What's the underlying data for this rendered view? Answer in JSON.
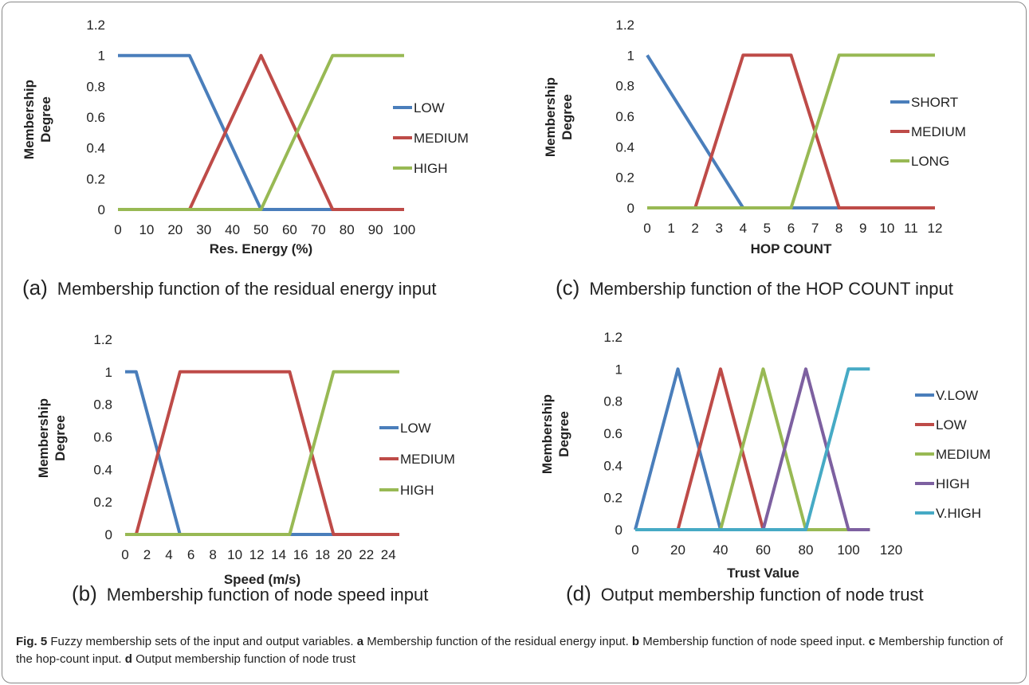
{
  "caption": {
    "fig_label": "Fig. 5",
    "lead": " Fuzzy membership sets of the input and output variables. ",
    "parts": [
      {
        "letter": "a",
        "text": " Membership function of the residual energy input. "
      },
      {
        "letter": "b",
        "text": " Membership function of node speed input. "
      },
      {
        "letter": "c",
        "text": " Membership function of the hop-count input. "
      },
      {
        "letter": "d",
        "text": " Output membership function of node trust"
      }
    ]
  },
  "chart_data": [
    {
      "id": "a",
      "type": "line",
      "subcaption_letter": "(a)",
      "subcaption": "Membership function of the residual energy input",
      "xlabel": "Res. Energy (%)",
      "ylabel": "Membership Degree",
      "xlim": [
        0,
        100
      ],
      "ylim": [
        0,
        1.2
      ],
      "xticks": [
        "0",
        "10",
        "20",
        "30",
        "40",
        "50",
        "60",
        "70",
        "80",
        "90",
        "100"
      ],
      "yticks": [
        "0",
        "0.2",
        "0.4",
        "0.6",
        "0.8",
        "1",
        "1.2"
      ],
      "legend": "right",
      "series": [
        {
          "name": "LOW",
          "color": "#4a7ebb",
          "x": [
            0,
            25,
            50,
            75,
            100
          ],
          "y": [
            1,
            1,
            0,
            0,
            0
          ]
        },
        {
          "name": "MEDIUM",
          "color": "#be4b48",
          "x": [
            0,
            25,
            50,
            75,
            100
          ],
          "y": [
            0,
            0,
            1,
            0,
            0
          ]
        },
        {
          "name": "HIGH",
          "color": "#98b954",
          "x": [
            0,
            25,
            50,
            75,
            100
          ],
          "y": [
            0,
            0,
            0,
            1,
            1
          ]
        }
      ]
    },
    {
      "id": "b",
      "type": "line",
      "subcaption_letter": "(b)",
      "subcaption": "Membership function of node speed input",
      "xlabel": "Speed (m/s)",
      "ylabel": "Membership Degree",
      "xlim": [
        0,
        25
      ],
      "ylim": [
        0,
        1.2
      ],
      "xticks": [
        "0",
        "2",
        "4",
        "6",
        "8",
        "10",
        "12",
        "14",
        "16",
        "18",
        "20",
        "22",
        "24"
      ],
      "yticks": [
        "0",
        "0.2",
        "0.4",
        "0.6",
        "0.8",
        "1",
        "1.2"
      ],
      "legend": "right",
      "series": [
        {
          "name": "LOW",
          "color": "#4a7ebb",
          "x": [
            0,
            1,
            5,
            15,
            19,
            25
          ],
          "y": [
            1,
            1,
            0,
            0,
            0,
            0
          ]
        },
        {
          "name": "MEDIUM",
          "color": "#be4b48",
          "x": [
            0,
            1,
            5,
            15,
            19,
            25
          ],
          "y": [
            0,
            0,
            1,
            1,
            0,
            0
          ]
        },
        {
          "name": "HIGH",
          "color": "#98b954",
          "x": [
            0,
            1,
            5,
            15,
            19,
            25
          ],
          "y": [
            0,
            0,
            0,
            0,
            1,
            1
          ]
        }
      ]
    },
    {
      "id": "c",
      "type": "line",
      "subcaption_letter": "(c)",
      "subcaption": "Membership function of the HOP COUNT input",
      "xlabel": "HOP COUNT",
      "ylabel": "Membership Degree",
      "xlim": [
        0,
        12
      ],
      "ylim": [
        0,
        1.2
      ],
      "xticks": [
        "0",
        "1",
        "2",
        "3",
        "4",
        "5",
        "6",
        "7",
        "8",
        "9",
        "10",
        "11",
        "12"
      ],
      "yticks": [
        "0",
        "0.2",
        "0.4",
        "0.6",
        "0.8",
        "1",
        "1.2"
      ],
      "legend": "right",
      "series": [
        {
          "name": "SHORT",
          "color": "#4a7ebb",
          "x": [
            0,
            2,
            4,
            6,
            8,
            12
          ],
          "y": [
            1,
            0.5,
            0,
            0,
            0,
            0
          ]
        },
        {
          "name": "MEDIUM",
          "color": "#be4b48",
          "x": [
            0,
            2,
            4,
            6,
            8,
            12
          ],
          "y": [
            0,
            0,
            1,
            1,
            0,
            0
          ]
        },
        {
          "name": "LONG",
          "color": "#98b954",
          "x": [
            0,
            2,
            4,
            6,
            8,
            12
          ],
          "y": [
            0,
            0,
            0,
            0,
            1,
            1
          ]
        }
      ]
    },
    {
      "id": "d",
      "type": "line",
      "subcaption_letter": "(d)",
      "subcaption": "Output membership function of node trust",
      "xlabel": "Trust Value",
      "ylabel": "Membership Degree",
      "xlim": [
        0,
        120
      ],
      "ylim": [
        0,
        1.2
      ],
      "xticks": [
        "0",
        "20",
        "40",
        "60",
        "80",
        "100",
        "120"
      ],
      "yticks": [
        "0",
        "0.2",
        "0.4",
        "0.6",
        "0.8",
        "1",
        "1.2"
      ],
      "legend": "right",
      "series": [
        {
          "name": "V.LOW",
          "color": "#4a7ebb",
          "x": [
            0,
            20,
            40,
            60,
            80,
            100,
            110
          ],
          "y": [
            0,
            1,
            0,
            0,
            0,
            0,
            0
          ]
        },
        {
          "name": "LOW",
          "color": "#be4b48",
          "x": [
            0,
            20,
            40,
            60,
            80,
            100,
            110
          ],
          "y": [
            0,
            0,
            1,
            0,
            0,
            0,
            0
          ]
        },
        {
          "name": "MEDIUM",
          "color": "#98b954",
          "x": [
            0,
            20,
            40,
            60,
            80,
            100,
            110
          ],
          "y": [
            0,
            0,
            0,
            1,
            0,
            0,
            0
          ]
        },
        {
          "name": "HIGH",
          "color": "#7d60a0",
          "x": [
            0,
            20,
            40,
            60,
            80,
            100,
            110
          ],
          "y": [
            0,
            0,
            0,
            0,
            1,
            0,
            0
          ]
        },
        {
          "name": "V.HIGH",
          "color": "#46aac5",
          "x": [
            0,
            20,
            40,
            60,
            80,
            100,
            110
          ],
          "y": [
            0,
            0,
            0,
            0,
            0,
            1,
            1
          ]
        }
      ]
    }
  ]
}
